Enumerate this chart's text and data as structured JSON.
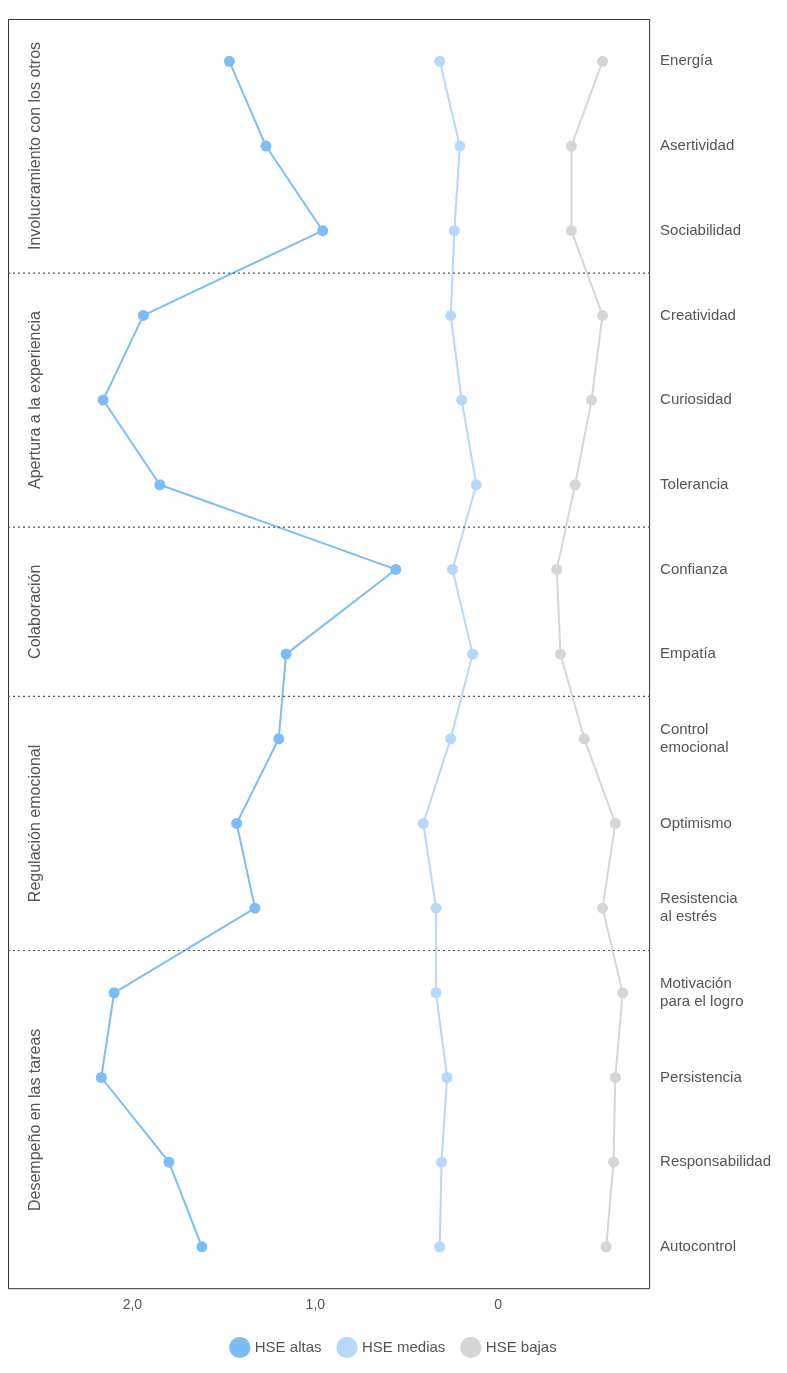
{
  "chart_data": {
    "type": "line",
    "orientation": "horizontal",
    "categories": [
      "Energía",
      "Asertividad",
      "Sociabilidad",
      "Creatividad",
      "Curiosidad",
      "Tolerancia",
      "Confianza",
      "Empatía",
      "Control emocional",
      "Optimismo",
      "Resistencia al estrés",
      "Motivación para el logro",
      "Persistencia",
      "Responsabilidad",
      "Autocontrol"
    ],
    "series": [
      {
        "name": "HSE altas",
        "color": "#7dbdf7",
        "values": [
          1.47,
          1.27,
          0.96,
          1.94,
          2.16,
          1.85,
          0.56,
          1.16,
          1.2,
          1.43,
          1.33,
          2.1,
          2.17,
          1.8,
          1.62
        ]
      },
      {
        "name": "HSE medias",
        "color": "#b5d8fb",
        "values": [
          0.32,
          0.21,
          0.24,
          0.26,
          0.2,
          0.12,
          0.25,
          0.14,
          0.26,
          0.41,
          0.34,
          0.34,
          0.28,
          0.31,
          0.32
        ]
      },
      {
        "name": "HSE bajas",
        "color": "#d6d6d6",
        "values": [
          -0.57,
          -0.4,
          -0.4,
          -0.57,
          -0.51,
          -0.42,
          -0.32,
          -0.34,
          -0.47,
          -0.64,
          -0.57,
          -0.68,
          -0.64,
          -0.63,
          -0.59
        ]
      }
    ],
    "xlim": [
      2.68,
      -0.83
    ],
    "xticks": [
      {
        "value": 2,
        "label": "2,0"
      },
      {
        "value": 1,
        "label": "1,0"
      },
      {
        "value": 0,
        "label": "0"
      }
    ],
    "annotations": [
      "Involucramiento con los otros",
      "Apertura a la experiencia",
      "Colaboración",
      "Regulación emocional",
      "Desempeño en las tareas"
    ],
    "grid": false,
    "legend": "bottom",
    "marker": "circle",
    "line_style": "solid"
  }
}
